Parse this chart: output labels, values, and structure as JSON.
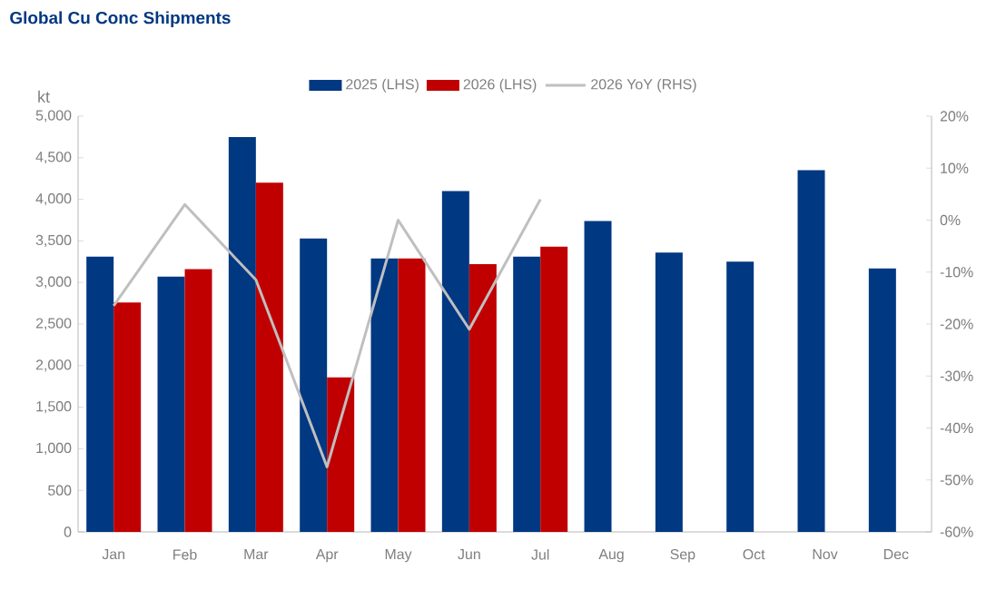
{
  "chart_data": {
    "type": "bar",
    "title": "Global Cu Conc Shipments",
    "ylabel": "kt",
    "categories": [
      "Jan",
      "Feb",
      "Mar",
      "Apr",
      "May",
      "Jun",
      "Jul",
      "Aug",
      "Sep",
      "Oct",
      "Nov",
      "Dec"
    ],
    "series": [
      {
        "name": "2025 (LHS)",
        "color": "#003882",
        "values": [
          3310,
          3070,
          4750,
          3530,
          3290,
          4100,
          3310,
          3740,
          3360,
          3250,
          4350,
          3170
        ]
      },
      {
        "name": "2026 (LHS)",
        "color": "#c00000",
        "values": [
          2760,
          3160,
          4200,
          1860,
          3290,
          3220,
          3430,
          null,
          null,
          null,
          null,
          null
        ]
      },
      {
        "name": "2026 YoY (RHS)",
        "type": "line",
        "axis": "y2",
        "color": "#bfbfbf",
        "marker": "none",
        "values": [
          -16.5,
          3,
          -11.5,
          -47.5,
          0,
          -21,
          4,
          null,
          null,
          null,
          null,
          null
        ]
      }
    ],
    "ylim": [
      0,
      5000
    ],
    "yticks": [
      {
        "value": 0,
        "label": "0"
      },
      {
        "value": 500,
        "label": "500"
      },
      {
        "value": 1000,
        "label": "1,000"
      },
      {
        "value": 1500,
        "label": "1,500"
      },
      {
        "value": 2000,
        "label": "2,000"
      },
      {
        "value": 2500,
        "label": "2,500"
      },
      {
        "value": 3000,
        "label": "3,000"
      },
      {
        "value": 3500,
        "label": "3,500"
      },
      {
        "value": 4000,
        "label": "4,000"
      },
      {
        "value": 4500,
        "label": "4,500"
      },
      {
        "value": 5000,
        "label": "5,000"
      }
    ],
    "y2lim": [
      -60,
      20
    ],
    "y2ticks": [
      {
        "value": -60,
        "label": "-60%"
      },
      {
        "value": -50,
        "label": "-50%"
      },
      {
        "value": -40,
        "label": "-40%"
      },
      {
        "value": -30,
        "label": "-30%"
      },
      {
        "value": -20,
        "label": "-20%"
      },
      {
        "value": -10,
        "label": "-10%"
      },
      {
        "value": 0,
        "label": "0%"
      },
      {
        "value": 10,
        "label": "10%"
      },
      {
        "value": 20,
        "label": "20%"
      }
    ],
    "grid": false,
    "legend": "top"
  }
}
